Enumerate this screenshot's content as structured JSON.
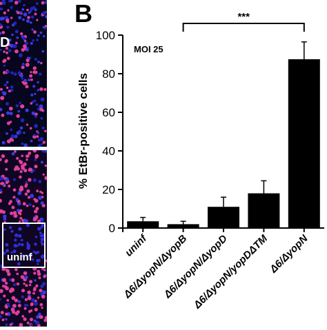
{
  "figure": {
    "panel_letter": "B",
    "left_panel_partial_letter": "D",
    "inset_label": "uninf"
  },
  "chart_data": {
    "type": "bar",
    "title": "",
    "ylabel": "% EtBr-positive cells",
    "xlabel": "",
    "ylim": [
      0,
      100
    ],
    "yticks": [
      0,
      20,
      40,
      60,
      80,
      100
    ],
    "categories": [
      "uninf",
      "Δ6/ΔyopN/ΔyopB",
      "Δ6/ΔyopN/ΔyopD",
      "Δ6/ΔyopN/yopDΔTM",
      "Δ6/ΔyopN"
    ],
    "values": [
      3.5,
      2,
      11,
      18,
      87.5
    ],
    "error": [
      2,
      1.5,
      5,
      6.5,
      9
    ],
    "annotation": "MOI 25",
    "significance": {
      "from": 1,
      "to": 4,
      "label": "***"
    },
    "bar_color": "#000000",
    "grid": false
  }
}
